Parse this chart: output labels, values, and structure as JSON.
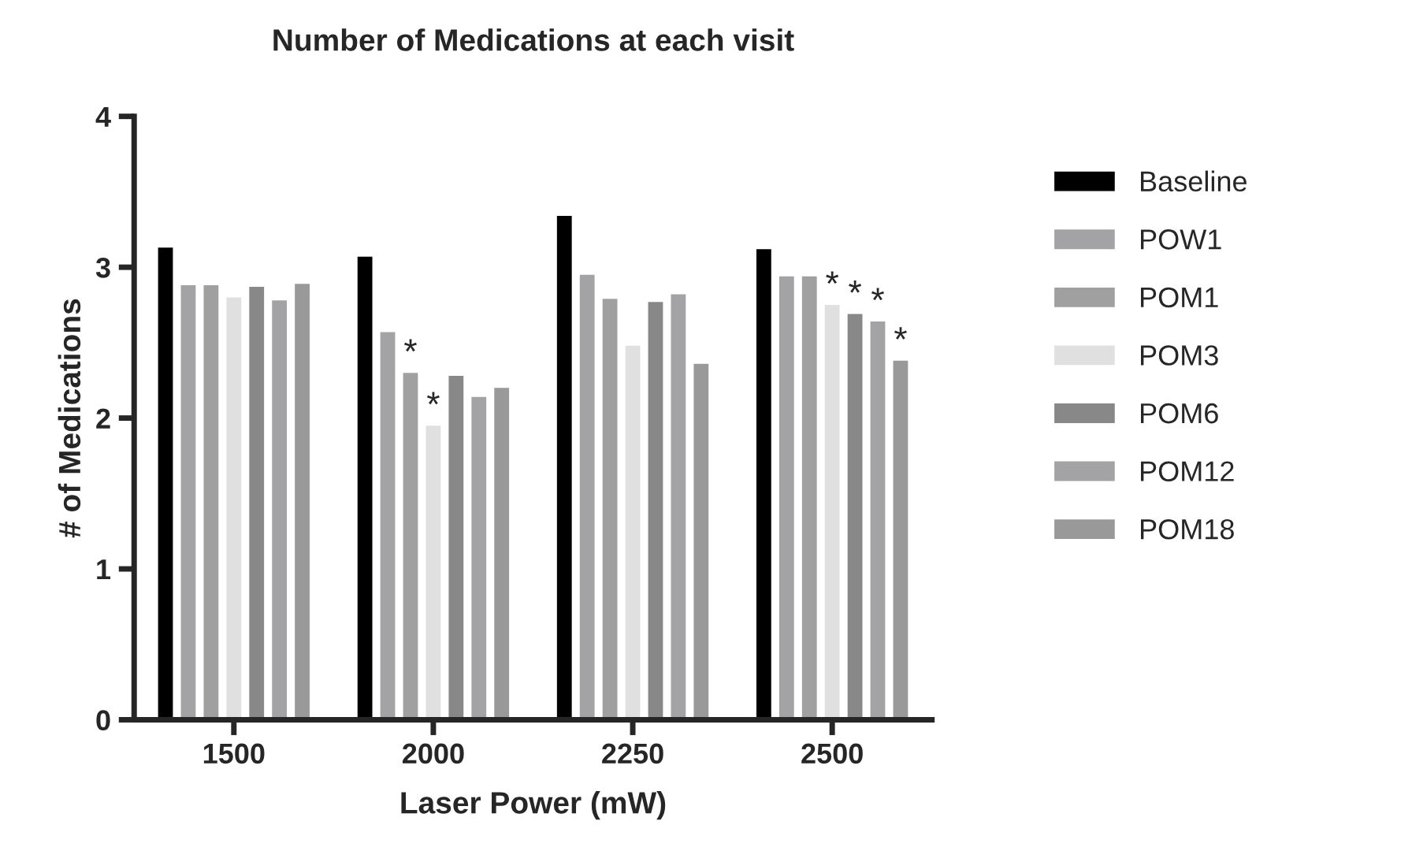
{
  "chart_data": {
    "type": "bar",
    "title": "Number of Medications at each visit",
    "xlabel": "Laser Power (mW)",
    "ylabel": "# of Medications",
    "categories": [
      "1500",
      "2000",
      "2250",
      "2500"
    ],
    "series": [
      {
        "name": "Baseline",
        "color": "#000000",
        "values": [
          3.13,
          3.07,
          3.34,
          3.12
        ]
      },
      {
        "name": "POW1",
        "color": "#a3a3a6",
        "values": [
          2.88,
          2.57,
          2.95,
          2.94
        ]
      },
      {
        "name": "POM1",
        "color": "#a0a0a0",
        "values": [
          2.88,
          2.3,
          2.79,
          2.94
        ],
        "value_labels": [
          null,
          "*",
          null,
          null
        ]
      },
      {
        "name": "POM3",
        "color": "#e0e0e0",
        "values": [
          2.8,
          1.95,
          2.48,
          2.75
        ],
        "value_labels": [
          null,
          "*",
          null,
          "*"
        ]
      },
      {
        "name": "POM6",
        "color": "#888888",
        "values": [
          2.87,
          2.28,
          2.77,
          2.69
        ],
        "value_labels": [
          null,
          null,
          null,
          "*"
        ]
      },
      {
        "name": "POM12",
        "color": "#a3a3a6",
        "values": [
          2.78,
          2.14,
          2.82,
          2.64
        ],
        "value_labels": [
          null,
          null,
          null,
          "*"
        ]
      },
      {
        "name": "POM18",
        "color": "#999999",
        "values": [
          2.89,
          2.2,
          2.36,
          2.38
        ],
        "value_labels": [
          null,
          null,
          null,
          "*"
        ]
      }
    ],
    "ylim": [
      0,
      4
    ],
    "yticks": [
      0,
      1,
      2,
      3,
      4
    ],
    "legend": "right"
  }
}
